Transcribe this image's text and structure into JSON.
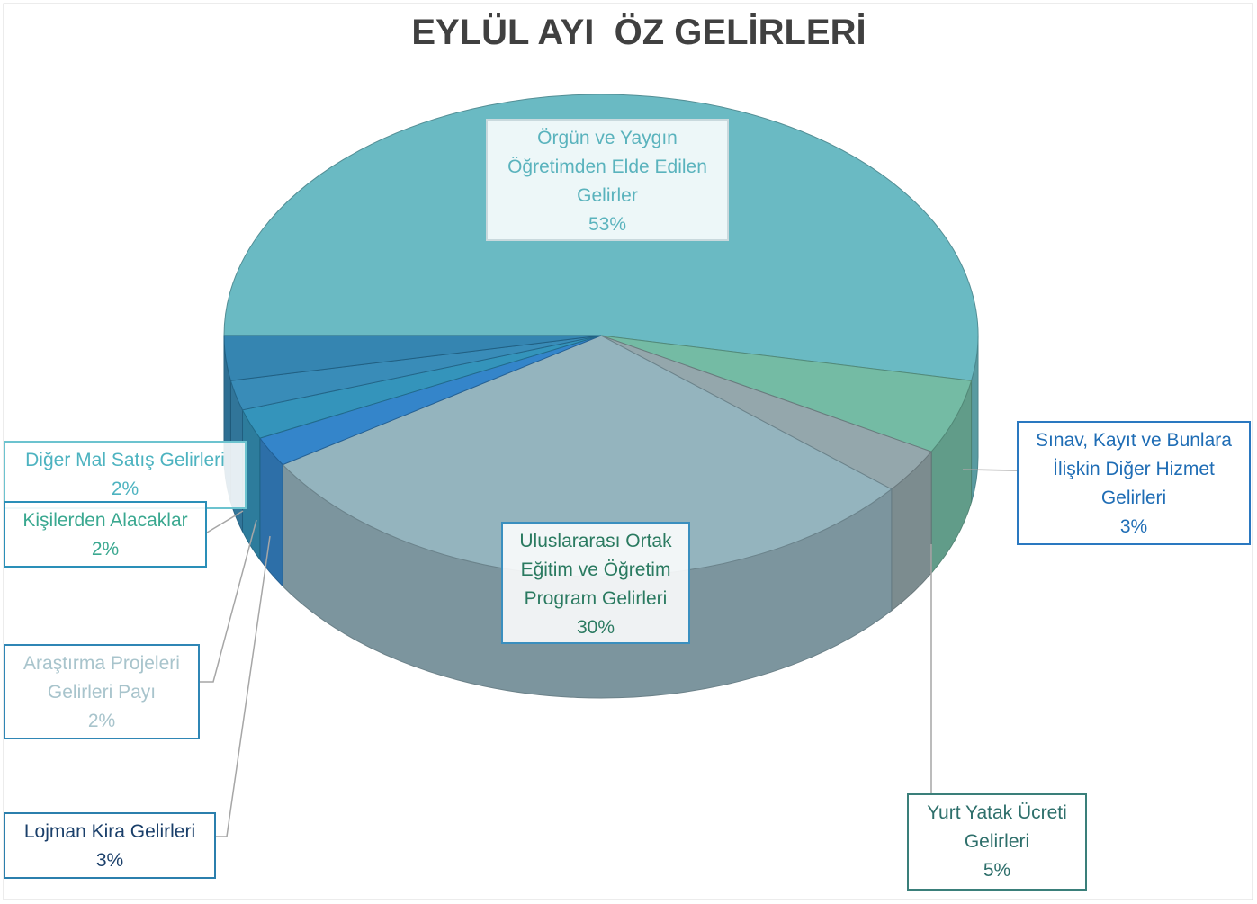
{
  "chart_data": {
    "type": "pie",
    "title": "EYLÜL AYI  ÖZ GELİRLERİ",
    "categories": [
      "Örgün ve Yaygın Öğretimden Elde Edilen Gelirler",
      "Yurt Yatak Ücreti Gelirleri",
      "Sınav, Kayıt ve Bunlara İlişkin Diğer Hizmet Gelirleri",
      "Uluslararası Ortak Eğitim ve Öğretim Program Gelirleri",
      "Diğer Mal Satış Gelirleri",
      "Kişilerden Alacaklar",
      "Araştırma Projeleri Gelirleri Payı",
      "Lojman Kira Gelirleri"
    ],
    "values": [
      53,
      5,
      3,
      30,
      2,
      2,
      2,
      3
    ],
    "value_labels": [
      "53%",
      "5%",
      "3%",
      "30%",
      "2%",
      "2%",
      "2%",
      "3%"
    ],
    "colors": [
      "#63b7c0",
      "#6db8a0",
      "#8fa3a8",
      "#8fb0bb",
      "#2a7fc8",
      "#2a8fb8",
      "#2f86b5",
      "#2b7fad"
    ]
  }
}
